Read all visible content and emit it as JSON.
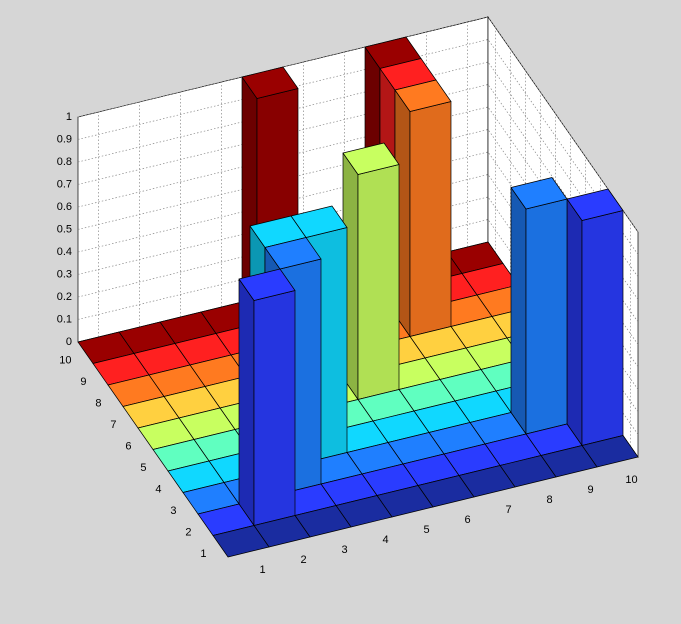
{
  "chart_data": {
    "type": "bar3",
    "xlim": [
      0.5,
      10.5
    ],
    "ylim": [
      0.5,
      10.5
    ],
    "zlim": [
      0,
      1
    ],
    "xticks": [
      1,
      2,
      3,
      4,
      5,
      6,
      7,
      8,
      9,
      10
    ],
    "yticks": [
      1,
      2,
      3,
      4,
      5,
      6,
      7,
      8,
      9,
      10
    ],
    "zticks": [
      0,
      0.1,
      0.2,
      0.3,
      0.4,
      0.5,
      0.6,
      0.7,
      0.8,
      0.9,
      1
    ],
    "grid": true,
    "row_colors": [
      "#1a2ca0",
      "#2a3cff",
      "#1f7fff",
      "#10d8ff",
      "#60ffc0",
      "#c8ff60",
      "#ffd040",
      "#ff7a20",
      "#ff2020",
      "#9a0000"
    ],
    "values": [
      [
        0,
        0,
        0,
        0,
        0,
        0,
        0,
        0,
        0,
        0
      ],
      [
        0,
        1,
        0,
        0,
        0,
        0,
        0,
        0,
        0,
        1
      ],
      [
        0,
        0,
        1,
        0,
        0,
        0,
        0,
        0,
        1,
        0
      ],
      [
        0,
        0,
        1,
        1,
        0,
        0,
        0,
        0,
        0,
        0
      ],
      [
        0,
        0,
        0,
        0,
        0,
        0,
        0,
        0,
        0,
        0
      ],
      [
        0,
        0,
        0,
        0,
        0,
        1,
        0,
        0,
        0,
        0
      ],
      [
        0,
        0,
        0,
        0,
        0,
        0,
        0,
        0,
        0,
        0
      ],
      [
        0,
        0,
        0,
        0,
        0,
        0,
        0,
        1,
        0,
        0
      ],
      [
        0,
        0,
        0,
        0,
        0,
        0,
        0,
        1,
        0,
        0
      ],
      [
        0,
        0,
        0,
        0,
        1,
        0,
        0,
        1,
        0,
        0
      ]
    ]
  }
}
